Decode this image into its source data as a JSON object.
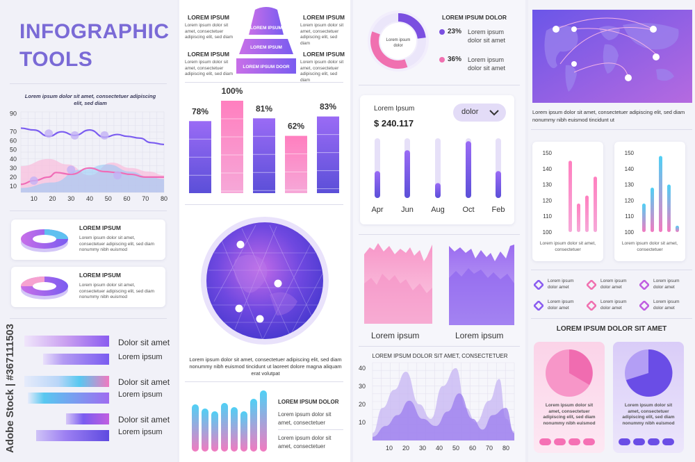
{
  "header": {
    "title_line1": "INFOGRAPHIC",
    "title_line2": "TOOLS"
  },
  "line_chart": {
    "caption": "Lorem ipsum dolor sit amet, consectetuer adipiscing elit, sed diam"
  },
  "donut_cards": [
    {
      "title": "LOREM IPSUM",
      "text": "Lorem ipsum dolor sit amet, consectetuer adipiscing elit, sed diam nonummy nibh euismod"
    },
    {
      "title": "LOREM IPSUM",
      "text": "Lorem ipsum dolor sit amet, consectetuer adipiscing elit, sed diam nonummy nibh euismod"
    }
  ],
  "progress_labels": [
    "Dolor sit amet",
    "Lorem ipsum",
    "Dolor sit amet",
    "Lorem ipsum",
    "Dolor sit amet",
    "Lorem ipsum"
  ],
  "pyramid": {
    "left_labels": [
      "LOREM IPSUM",
      "LOREM IPSUM"
    ],
    "right_labels": [
      "LOREM IPSUM",
      "LOREM IPSUM"
    ],
    "side_text": "Lorem ipsum dolor sit amet, consectetuer adipiscing elit, sed diam",
    "levels": [
      "LOREM IPSUM",
      "LOREM IPSUM",
      "LOREM IPSUM DOOR"
    ]
  },
  "cube_chart": {
    "percents": [
      "78%",
      "100%",
      "81%",
      "62%",
      "83%"
    ],
    "values": [
      78,
      100,
      81,
      62,
      83
    ]
  },
  "globe": {
    "caption": "Lorem ipsum dolor sit amet, consectetuer adipiscing elit, sed diam nonummy nibh euismod tincidunt ut laoreet dolore magna aliquam erat volutpat"
  },
  "bottom_bars": {
    "title": "LOREM IPSUM DOLOR",
    "items": [
      "Lorem ipsum dolor sit amet, consectetuer",
      "Lorem ipsum dolor sit amet, consectetuer"
    ]
  },
  "donut_top": {
    "title": "LOREM IPSUM DOLOR",
    "center": "Lorem ipsum dolor",
    "items": [
      {
        "pct": "23%",
        "text": "Lorem ipsum dolor sit amet",
        "color": "#7b4fe0"
      },
      {
        "pct": "36%",
        "text": "Lorem ipsum dolor sit amet",
        "color": "#f070b0"
      }
    ]
  },
  "balance": {
    "label": "Lorem Ipsum",
    "amount": "$ 240.117",
    "dropdown": "dolor",
    "months": [
      "Apr",
      "Jun",
      "Aug",
      "Oct",
      "Feb"
    ]
  },
  "area_labels": [
    "Lorem ipsum",
    "Lorem ipsum"
  ],
  "wave_chart": {
    "title": "LOREM IPSUM DOLOR SIT AMET, CONSECTETUER"
  },
  "map": {
    "caption": "Lorem ipsum dolor sit amet, consectetuer adipiscing elit, sed diam nonummy nibh euismod tincidunt ut"
  },
  "mini_bars": [
    {
      "caption": "Lorem ipsum dolor sit amet, consectetuer"
    },
    {
      "caption": "Lorem ipsum dolor sit amet, consectetuer"
    }
  ],
  "diamond_items": [
    "Lorem ipsum dolor amet",
    "Lorem ipsum dolor amet",
    "Lorem ipsum dolor amet",
    "Lorem ipsum dolor amet",
    "Lorem ipsum dolor amet",
    "Lorem ipsum dolor amet"
  ],
  "pie_section": {
    "title": "LOREM IPSUM DOLOR SIT AMET",
    "cards": [
      {
        "text": "Lorem ipsum dolor sit amet, consectetuer adipiscing elit, sed diam nonummy nibh euismod"
      },
      {
        "text": "Lorem ipsum dolor sit amet, consectetuer adipiscing elit, sed diam nonummy nibh euismod"
      }
    ]
  },
  "watermark": "Adobe Stock | #367111503",
  "colors": {
    "purple": "#7a5cf0",
    "pink": "#f46fb0",
    "cyan": "#4cc8f0",
    "title": "#7a6ad6"
  },
  "chart_data": [
    {
      "type": "line",
      "x": [
        10,
        20,
        30,
        40,
        50,
        60,
        70,
        80
      ],
      "xlim": [
        3,
        80
      ],
      "ylim": [
        3,
        92
      ],
      "yticks": [
        10,
        20,
        30,
        40,
        50,
        60,
        70,
        90
      ],
      "series": [
        {
          "x": [
            3,
            10,
            18,
            25,
            32,
            40,
            48,
            55,
            60,
            67,
            73,
            80
          ],
          "values": [
            74,
            72,
            65,
            70,
            66,
            72,
            64,
            67,
            65,
            63,
            58,
            56
          ]
        },
        {
          "x": [
            3,
            10,
            18,
            22,
            30,
            40,
            48,
            55,
            62,
            70,
            80
          ],
          "values": [
            12,
            16,
            20,
            25,
            23,
            30,
            26,
            25,
            23,
            20,
            20
          ]
        }
      ],
      "grid": true
    },
    {
      "type": "bar",
      "categories": [
        "Apr",
        "Jun",
        "Aug",
        "Oct",
        "Feb"
      ],
      "values": [
        45,
        80,
        25,
        95,
        45
      ],
      "ylim": [
        0,
        100
      ]
    },
    {
      "type": "area",
      "x": [
        10,
        20,
        30,
        40,
        50,
        60,
        70,
        80
      ],
      "xlim": [
        0,
        85
      ],
      "ylim": [
        0,
        43
      ],
      "yticks": [
        10,
        20,
        30,
        40
      ],
      "series": [
        {
          "x": [
            0,
            6,
            13,
            20,
            28,
            35,
            42,
            50,
            56,
            62,
            70,
            76,
            80,
            85
          ],
          "values": [
            4,
            18,
            28,
            38,
            20,
            12,
            30,
            40,
            18,
            10,
            22,
            34,
            12,
            5
          ]
        },
        {
          "x": [
            0,
            8,
            15,
            22,
            30,
            38,
            45,
            52,
            60,
            66,
            72,
            80,
            85
          ],
          "values": [
            2,
            8,
            14,
            22,
            12,
            8,
            16,
            26,
            12,
            6,
            14,
            18,
            4
          ]
        }
      ]
    },
    {
      "type": "bar",
      "values": [
        100,
        145,
        118,
        123,
        135
      ],
      "ylim": [
        100,
        150
      ],
      "yticks": [
        100,
        110,
        120,
        130,
        140,
        150
      ]
    },
    {
      "type": "bar",
      "values": [
        118,
        128,
        148,
        130,
        104
      ],
      "ylim": [
        100,
        150
      ],
      "yticks": [
        100,
        110,
        120,
        130,
        140,
        150
      ]
    }
  ]
}
